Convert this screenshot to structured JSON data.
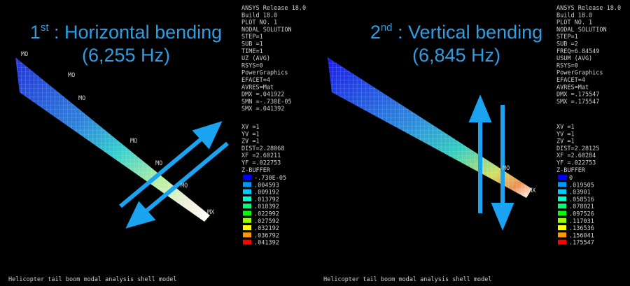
{
  "panels": [
    {
      "title_number": "1",
      "title_suffix": "st",
      "title_text": " : Horizontal bending",
      "subtitle": "(6,255 Hz)",
      "info": [
        "ANSYS Release 18.0",
        "Build 18.0",
        "PLOT NO.   1",
        "NODAL SOLUTION",
        "STEP=1",
        "SUB =1",
        "TIME=1",
        "UZ       (AVG)",
        "RSYS=0",
        "PowerGraphics",
        "EFACET=4",
        "AVRES=Mat",
        "DMX =.041922",
        "SMN =-.730E-05",
        "SMX =.041392"
      ],
      "view": [
        "XV  =1",
        "YV  =1",
        "ZV  =1",
        "DIST=2.28068",
        "XF  =2.60211",
        "YF  =.022753",
        "Z-BUFFER"
      ],
      "legend": [
        "-.730E-05",
        ".004593",
        ".009192",
        ".013792",
        ".018392",
        ".022992",
        ".027592",
        ".032192",
        ".036792",
        ".041392"
      ],
      "node_labels": [
        "MO",
        "MO",
        "MO",
        "MO",
        "MO",
        "MO",
        "MX"
      ],
      "footer": "Helicopter tail boom modal analysis shell model"
    },
    {
      "title_number": "2",
      "title_suffix": "nd",
      "title_text": " : Vertical bending",
      "subtitle": "(6,845 Hz)",
      "info": [
        "ANSYS Release 18.0",
        "Build 18.0",
        "PLOT NO.   1",
        "NODAL SOLUTION",
        "STEP=1",
        "SUB =2",
        "FREQ=6.84549",
        "USUM     (AVG)",
        "RSYS=0",
        "PowerGraphics",
        "EFACET=4",
        "AVRES=Mat",
        "DMX =.175547",
        "SMX =.175547"
      ],
      "view": [
        "XV  =1",
        "YV  =1",
        "ZV  =1",
        "DIST=2.28125",
        "XF  =2.60284",
        "YF  =.022753",
        "Z-BUFFER"
      ],
      "legend": [
        "0",
        ".019505",
        ".03901",
        ".058516",
        ".078021",
        ".097526",
        ".117031",
        ".136536",
        ".156041",
        ".175547"
      ],
      "node_labels": [
        "MO",
        "MX"
      ],
      "footer": "Helicopter tail boom modal analysis shell model"
    }
  ]
}
